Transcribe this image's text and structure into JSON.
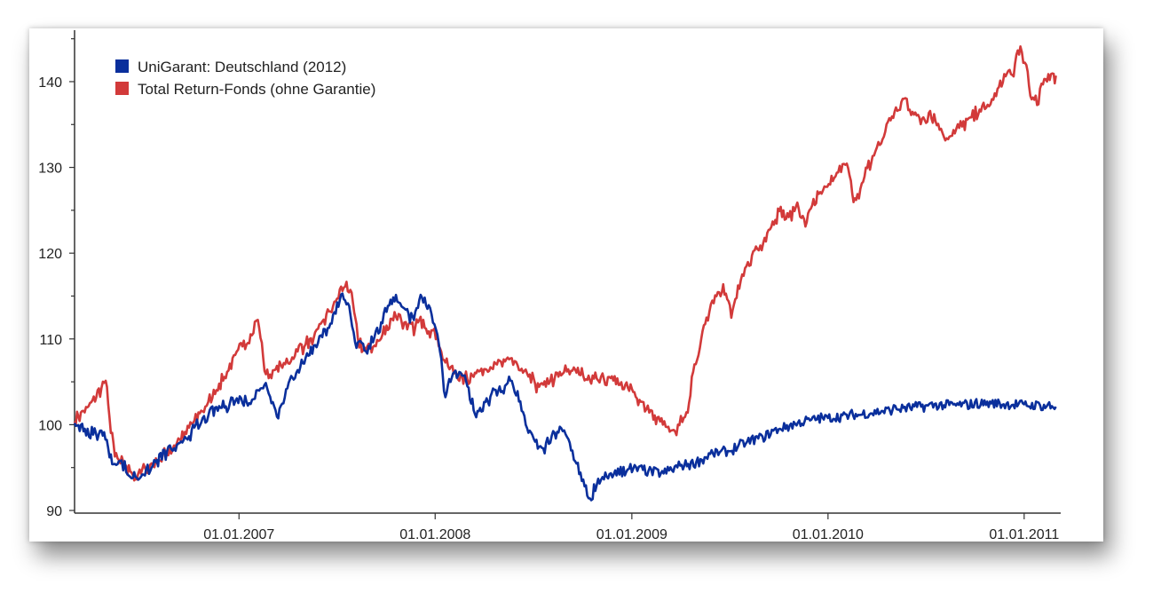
{
  "chart_data": {
    "type": "line",
    "title": "",
    "xlabel": "",
    "ylabel": "",
    "ylim": [
      90,
      146
    ],
    "xlim": [
      "2006-03-01",
      "2011-03-10"
    ],
    "y_ticks": [
      90,
      100,
      110,
      120,
      130,
      140
    ],
    "x_ticks": [
      {
        "date": "2007-01-01",
        "label": "01.01.2007"
      },
      {
        "date": "2008-01-01",
        "label": "01.01.2008"
      },
      {
        "date": "2009-01-01",
        "label": "01.01.2009"
      },
      {
        "date": "2010-01-01",
        "label": "01.01.2010"
      },
      {
        "date": "2011-01-01",
        "label": "01.01.2011"
      }
    ],
    "legend_position": "top-left",
    "grid": false,
    "series": [
      {
        "name": "UniGarant: Deutschland (2012)",
        "color": "#0a2f9c",
        "points": [
          [
            "2006-03-01",
            100.2
          ],
          [
            "2006-03-20",
            99.2
          ],
          [
            "2006-04-10",
            98.8
          ],
          [
            "2006-04-25",
            99.0
          ],
          [
            "2006-05-05",
            96.5
          ],
          [
            "2006-05-15",
            95.5
          ],
          [
            "2006-05-25",
            96.0
          ],
          [
            "2006-06-05",
            94.8
          ],
          [
            "2006-06-15",
            94.0
          ],
          [
            "2006-06-25",
            93.8
          ],
          [
            "2006-07-05",
            94.5
          ],
          [
            "2006-07-20",
            94.8
          ],
          [
            "2006-08-01",
            95.8
          ],
          [
            "2006-08-20",
            96.8
          ],
          [
            "2006-09-05",
            97.2
          ],
          [
            "2006-09-20",
            98.2
          ],
          [
            "2006-10-05",
            99.2
          ],
          [
            "2006-10-20",
            100.2
          ],
          [
            "2006-11-05",
            101.2
          ],
          [
            "2006-11-20",
            101.8
          ],
          [
            "2006-12-05",
            102.2
          ],
          [
            "2006-12-20",
            102.8
          ],
          [
            "2007-01-05",
            103.0
          ],
          [
            "2007-01-20",
            102.5
          ],
          [
            "2007-02-05",
            103.8
          ],
          [
            "2007-02-20",
            104.8
          ],
          [
            "2007-03-05",
            102.5
          ],
          [
            "2007-03-15",
            101.0
          ],
          [
            "2007-04-01",
            104.5
          ],
          [
            "2007-04-20",
            106.5
          ],
          [
            "2007-05-05",
            107.5
          ],
          [
            "2007-05-20",
            109.0
          ],
          [
            "2007-06-05",
            110.5
          ],
          [
            "2007-06-20",
            112.0
          ],
          [
            "2007-07-05",
            114.0
          ],
          [
            "2007-07-15",
            114.8
          ],
          [
            "2007-07-25",
            113.5
          ],
          [
            "2007-08-05",
            109.5
          ],
          [
            "2007-08-15",
            110.0
          ],
          [
            "2007-08-25",
            108.5
          ],
          [
            "2007-09-10",
            110.5
          ],
          [
            "2007-09-25",
            112.0
          ],
          [
            "2007-10-05",
            114.0
          ],
          [
            "2007-10-15",
            114.8
          ],
          [
            "2007-10-25",
            114.5
          ],
          [
            "2007-11-05",
            113.5
          ],
          [
            "2007-11-20",
            112.5
          ],
          [
            "2007-12-05",
            114.8
          ],
          [
            "2007-12-20",
            114.0
          ],
          [
            "2008-01-05",
            110.5
          ],
          [
            "2008-01-15",
            106.0
          ],
          [
            "2008-01-20",
            103.2
          ],
          [
            "2008-02-01",
            105.5
          ],
          [
            "2008-02-15",
            106.0
          ],
          [
            "2008-03-01",
            104.8
          ],
          [
            "2008-03-15",
            101.2
          ],
          [
            "2008-04-01",
            102.5
          ],
          [
            "2008-04-20",
            103.8
          ],
          [
            "2008-05-05",
            104.0
          ],
          [
            "2008-05-20",
            105.5
          ],
          [
            "2008-06-05",
            103.0
          ],
          [
            "2008-06-20",
            99.5
          ],
          [
            "2008-07-05",
            98.0
          ],
          [
            "2008-07-20",
            97.0
          ],
          [
            "2008-08-05",
            98.5
          ],
          [
            "2008-08-20",
            99.5
          ],
          [
            "2008-09-05",
            98.0
          ],
          [
            "2008-09-20",
            95.5
          ],
          [
            "2008-10-05",
            92.5
          ],
          [
            "2008-10-15",
            91.4
          ],
          [
            "2008-10-25",
            92.6
          ],
          [
            "2008-11-10",
            93.5
          ],
          [
            "2008-12-01",
            94.5
          ],
          [
            "2009-01-01",
            94.8
          ],
          [
            "2009-02-01",
            94.6
          ],
          [
            "2009-03-01",
            94.3
          ],
          [
            "2009-04-01",
            95.2
          ],
          [
            "2009-05-01",
            95.6
          ],
          [
            "2009-06-01",
            96.6
          ],
          [
            "2009-07-01",
            96.9
          ],
          [
            "2009-08-01",
            97.9
          ],
          [
            "2009-09-01",
            98.6
          ],
          [
            "2009-10-01",
            99.5
          ],
          [
            "2009-11-01",
            100.1
          ],
          [
            "2009-12-01",
            100.6
          ],
          [
            "2010-01-01",
            100.8
          ],
          [
            "2010-03-01",
            101.2
          ],
          [
            "2010-05-01",
            101.8
          ],
          [
            "2010-07-01",
            102.2
          ],
          [
            "2010-09-01",
            102.3
          ],
          [
            "2010-11-01",
            102.5
          ],
          [
            "2011-01-01",
            102.3
          ],
          [
            "2011-03-01",
            102.1
          ]
        ]
      },
      {
        "name": "Total Return-Fonds (ohne Garantie)",
        "color": "#d23a3a",
        "points": [
          [
            "2006-03-01",
            100.4
          ],
          [
            "2006-03-15",
            101.5
          ],
          [
            "2006-04-01",
            102.5
          ],
          [
            "2006-04-20",
            104.0
          ],
          [
            "2006-04-28",
            105.2
          ],
          [
            "2006-05-05",
            101.0
          ],
          [
            "2006-05-15",
            96.5
          ],
          [
            "2006-05-25",
            95.8
          ],
          [
            "2006-06-05",
            95.0
          ],
          [
            "2006-06-15",
            94.2
          ],
          [
            "2006-06-25",
            94.0
          ],
          [
            "2006-07-10",
            94.8
          ],
          [
            "2006-07-25",
            95.5
          ],
          [
            "2006-08-10",
            96.0
          ],
          [
            "2006-08-25",
            97.0
          ],
          [
            "2006-09-10",
            98.0
          ],
          [
            "2006-09-25",
            99.2
          ],
          [
            "2006-10-10",
            100.5
          ],
          [
            "2006-10-25",
            101.8
          ],
          [
            "2006-11-10",
            103.0
          ],
          [
            "2006-11-25",
            104.5
          ],
          [
            "2006-12-10",
            106.5
          ],
          [
            "2006-12-25",
            108.0
          ],
          [
            "2007-01-10",
            109.5
          ],
          [
            "2007-01-25",
            110.5
          ],
          [
            "2007-02-05",
            112.3
          ],
          [
            "2007-02-20",
            105.5
          ],
          [
            "2007-03-05",
            106.0
          ],
          [
            "2007-03-20",
            106.8
          ],
          [
            "2007-04-05",
            107.5
          ],
          [
            "2007-04-20",
            108.5
          ],
          [
            "2007-05-05",
            109.5
          ],
          [
            "2007-05-20",
            110.2
          ],
          [
            "2007-06-05",
            111.8
          ],
          [
            "2007-06-20",
            113.5
          ],
          [
            "2007-07-05",
            115.0
          ],
          [
            "2007-07-20",
            116.5
          ],
          [
            "2007-08-01",
            114.5
          ],
          [
            "2007-08-10",
            110.0
          ],
          [
            "2007-08-25",
            108.5
          ],
          [
            "2007-09-10",
            109.5
          ],
          [
            "2007-09-25",
            110.5
          ],
          [
            "2007-10-10",
            112.0
          ],
          [
            "2007-10-25",
            113.0
          ],
          [
            "2007-11-10",
            111.0
          ],
          [
            "2007-11-25",
            111.5
          ],
          [
            "2007-12-10",
            112.0
          ],
          [
            "2007-12-25",
            111.0
          ],
          [
            "2008-01-05",
            110.5
          ],
          [
            "2008-01-15",
            108.0
          ],
          [
            "2008-01-25",
            106.5
          ],
          [
            "2008-02-10",
            106.0
          ],
          [
            "2008-02-25",
            105.5
          ],
          [
            "2008-03-15",
            105.8
          ],
          [
            "2008-04-01",
            106.5
          ],
          [
            "2008-04-20",
            107.0
          ],
          [
            "2008-05-05",
            107.2
          ],
          [
            "2008-05-20",
            107.8
          ],
          [
            "2008-06-05",
            106.5
          ],
          [
            "2008-06-25",
            105.5
          ],
          [
            "2008-07-10",
            104.5
          ],
          [
            "2008-07-25",
            104.5
          ],
          [
            "2008-08-10",
            105.5
          ],
          [
            "2008-08-25",
            106.0
          ],
          [
            "2008-09-10",
            106.5
          ],
          [
            "2008-09-25",
            106.2
          ],
          [
            "2008-10-10",
            105.0
          ],
          [
            "2008-10-25",
            105.8
          ],
          [
            "2008-11-10",
            105.2
          ],
          [
            "2008-11-25",
            105.5
          ],
          [
            "2008-12-10",
            104.5
          ],
          [
            "2009-01-01",
            104.0
          ],
          [
            "2009-01-20",
            102.5
          ],
          [
            "2009-02-05",
            101.5
          ],
          [
            "2009-02-20",
            100.5
          ],
          [
            "2009-03-05",
            100.0
          ],
          [
            "2009-03-15",
            99.2
          ],
          [
            "2009-03-25",
            99.0
          ],
          [
            "2009-04-05",
            100.5
          ],
          [
            "2009-04-15",
            101.5
          ],
          [
            "2009-04-25",
            106.0
          ],
          [
            "2009-05-05",
            108.5
          ],
          [
            "2009-05-20",
            112.5
          ],
          [
            "2009-06-05",
            115.0
          ],
          [
            "2009-06-20",
            116.0
          ],
          [
            "2009-07-05",
            112.8
          ],
          [
            "2009-07-20",
            116.0
          ],
          [
            "2009-08-05",
            119.0
          ],
          [
            "2009-08-20",
            120.5
          ],
          [
            "2009-09-05",
            121.5
          ],
          [
            "2009-09-20",
            123.5
          ],
          [
            "2009-10-05",
            125.0
          ],
          [
            "2009-10-20",
            124.0
          ],
          [
            "2009-11-05",
            125.5
          ],
          [
            "2009-11-20",
            123.5
          ],
          [
            "2009-12-05",
            126.0
          ],
          [
            "2009-12-20",
            127.0
          ],
          [
            "2010-01-05",
            128.0
          ],
          [
            "2010-01-20",
            129.5
          ],
          [
            "2010-02-05",
            130.5
          ],
          [
            "2010-02-15",
            127.0
          ],
          [
            "2010-02-25",
            126.5
          ],
          [
            "2010-03-10",
            129.0
          ],
          [
            "2010-03-25",
            131.0
          ],
          [
            "2010-04-10",
            133.0
          ],
          [
            "2010-04-25",
            135.5
          ],
          [
            "2010-05-10",
            136.5
          ],
          [
            "2010-05-25",
            138.0
          ],
          [
            "2010-06-10",
            136.0
          ],
          [
            "2010-06-25",
            135.5
          ],
          [
            "2010-07-10",
            136.5
          ],
          [
            "2010-07-25",
            135.0
          ],
          [
            "2010-08-10",
            133.5
          ],
          [
            "2010-08-25",
            134.0
          ],
          [
            "2010-09-10",
            135.0
          ],
          [
            "2010-09-25",
            135.8
          ],
          [
            "2010-10-10",
            136.5
          ],
          [
            "2010-10-25",
            137.0
          ],
          [
            "2010-11-10",
            138.5
          ],
          [
            "2010-11-25",
            140.5
          ],
          [
            "2010-12-10",
            141.0
          ],
          [
            "2010-12-25",
            143.8
          ],
          [
            "2011-01-05",
            142.0
          ],
          [
            "2011-01-15",
            138.0
          ],
          [
            "2011-01-25",
            137.5
          ],
          [
            "2011-02-05",
            139.5
          ],
          [
            "2011-02-15",
            141.0
          ],
          [
            "2011-02-25",
            140.5
          ],
          [
            "2011-03-01",
            140.7
          ]
        ]
      }
    ]
  }
}
